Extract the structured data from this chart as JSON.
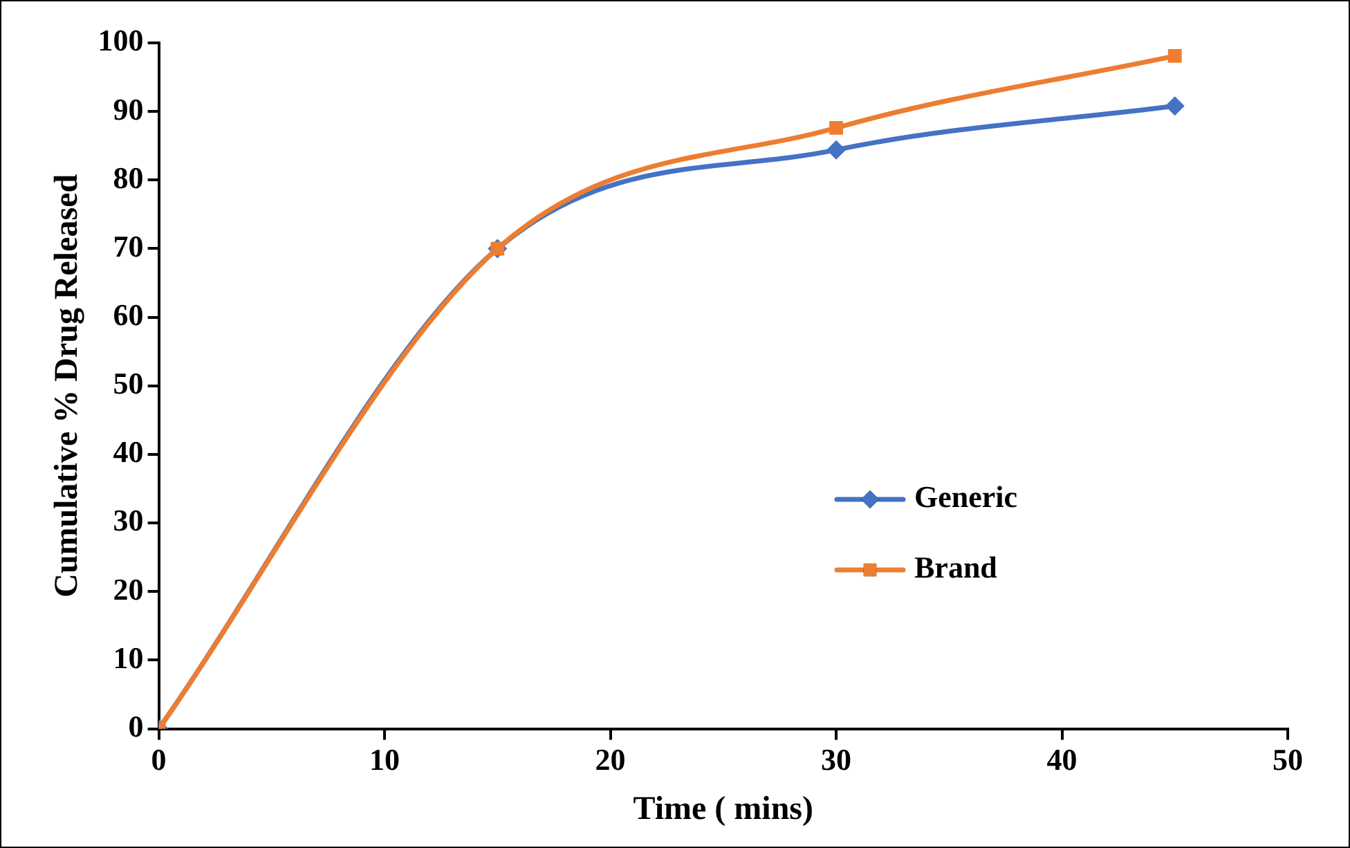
{
  "chart_data": {
    "type": "line",
    "xlabel": "Time ( mins)",
    "ylabel": "Cumulative % Drug Released",
    "x": [
      0,
      15,
      30,
      45
    ],
    "series": [
      {
        "name": "Generic",
        "color": "#4472c4",
        "marker": "diamond",
        "values": [
          0,
          70,
          84.4,
          90.8
        ]
      },
      {
        "name": "Brand",
        "color": "#ed7d31",
        "marker": "square",
        "values": [
          0,
          70,
          87.6,
          98.1
        ]
      }
    ],
    "xlim": [
      0,
      50
    ],
    "xticks": [
      0,
      10,
      20,
      30,
      40,
      50
    ],
    "ylim": [
      0,
      100
    ],
    "yticks": [
      0,
      10,
      20,
      30,
      40,
      50,
      60,
      70,
      80,
      90,
      100
    ],
    "grid": false,
    "legend": "right",
    "line_style": "solid"
  }
}
